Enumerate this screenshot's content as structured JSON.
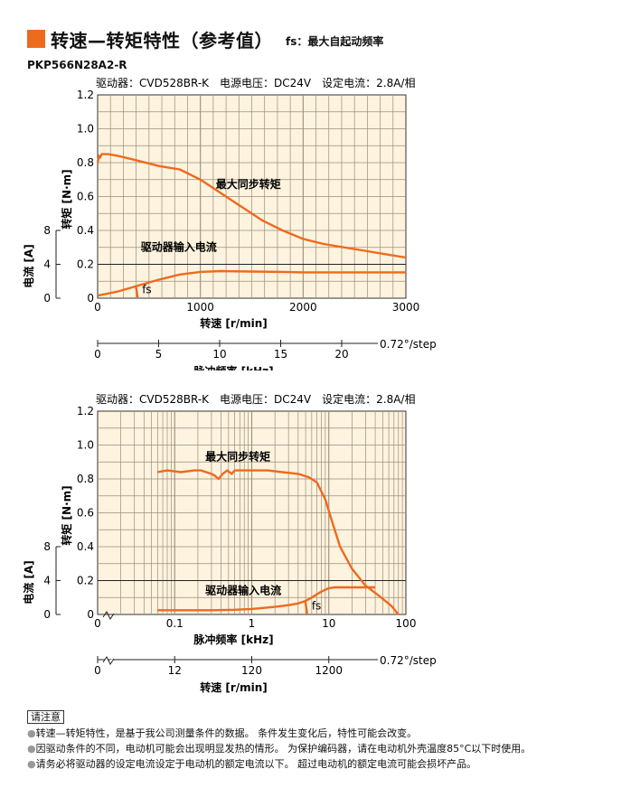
{
  "header": {
    "title": "转速—转矩特性（参考值）",
    "fs_note": "fs：最大自起动频率",
    "model": "PKP566N28A2-R",
    "accent": "#ee6a1d"
  },
  "chart_data": [
    {
      "type": "line",
      "conditions": "驱动器：CVD528BR-K　电源电压：DC24V　设定电流：2.8A/相",
      "ylabel": "转矩 [N·m]",
      "ylim": [
        0,
        1.2
      ],
      "yticks": [
        "0",
        "0.2",
        "0.4",
        "0.6",
        "0.8",
        "1.0",
        "1.2"
      ],
      "current_axis_label": "电流 [A]",
      "current_ticks": [
        "0",
        "4",
        "8"
      ],
      "current_lim": [
        0,
        8
      ],
      "xlabel": "转速 [r/min]",
      "xlim": [
        0,
        3000
      ],
      "xticks": [
        "0",
        "1000",
        "2000",
        "3000"
      ],
      "x2label": "脉冲频率 [kHz]",
      "x2ticks": [
        "0",
        "5",
        "10",
        "15",
        "20",
        "0.72°/step"
      ],
      "series": [
        {
          "name": "最大同步转矩",
          "color": "#ee6a1d",
          "x": [
            0,
            15,
            25,
            40,
            60,
            100,
            200,
            400,
            600,
            800,
            1000,
            1200,
            1400,
            1600,
            1800,
            2000,
            2200,
            2400,
            2600,
            2800,
            3000
          ],
          "y": [
            0.8,
            0.84,
            0.83,
            0.85,
            0.85,
            0.85,
            0.84,
            0.81,
            0.78,
            0.76,
            0.7,
            0.62,
            0.54,
            0.46,
            0.4,
            0.35,
            0.32,
            0.3,
            0.28,
            0.26,
            0.24
          ]
        },
        {
          "name": "驱动器输入电流",
          "color": "#ee6a1d",
          "axis": "current",
          "x": [
            0,
            200,
            400,
            600,
            800,
            1000,
            1200,
            1500,
            1800,
            2000,
            2500,
            3000
          ],
          "y": [
            0.3,
            0.8,
            1.5,
            2.2,
            2.8,
            3.1,
            3.2,
            3.15,
            3.1,
            3.05,
            3.05,
            3.05
          ]
        }
      ],
      "annotations": [
        "最大同步转矩",
        "驱动器输入电流",
        "fs"
      ],
      "fs": {
        "x": 380,
        "y0": 0.075,
        "y1": 0.005
      }
    },
    {
      "type": "line",
      "log_x": true,
      "conditions": "驱动器：CVD528BR-K　电源电压：DC24V　设定电流：2.8A/相",
      "ylabel": "转矩 [N·m]",
      "ylim": [
        0,
        1.2
      ],
      "yticks": [
        "0",
        "0.2",
        "0.4",
        "0.6",
        "0.8",
        "1.0",
        "1.2"
      ],
      "current_axis_label": "电流 [A]",
      "current_ticks": [
        "0",
        "4",
        "8"
      ],
      "current_lim": [
        0,
        8
      ],
      "xlabel": "脉冲频率 [kHz]",
      "xlim": [
        0.01,
        100
      ],
      "xticks": [
        "0",
        "0.1",
        "1",
        "10",
        "100"
      ],
      "x2label": "转速 [r/min]",
      "x2ticks": [
        "0",
        "12",
        "120",
        "1200",
        "0.72°/step"
      ],
      "series": [
        {
          "name": "最大同步转矩",
          "color": "#ee6a1d",
          "x": [
            0.06,
            0.08,
            0.12,
            0.18,
            0.22,
            0.3,
            0.33,
            0.37,
            0.42,
            0.48,
            0.55,
            0.6,
            0.8,
            1.2,
            1.6,
            2.5,
            4,
            5.5,
            7,
            9,
            11,
            14,
            20,
            30,
            45,
            65,
            80
          ],
          "y": [
            0.84,
            0.85,
            0.84,
            0.85,
            0.85,
            0.83,
            0.82,
            0.8,
            0.83,
            0.85,
            0.83,
            0.85,
            0.85,
            0.85,
            0.85,
            0.84,
            0.83,
            0.81,
            0.78,
            0.68,
            0.55,
            0.4,
            0.27,
            0.17,
            0.11,
            0.05,
            0.0
          ]
        },
        {
          "name": "驱动器输入电流",
          "color": "#ee6a1d",
          "axis": "current",
          "x": [
            0.06,
            0.1,
            0.3,
            0.6,
            1,
            2,
            3,
            4,
            5,
            6,
            8,
            10,
            12,
            15,
            20,
            40
          ],
          "y": [
            0.5,
            0.5,
            0.5,
            0.55,
            0.65,
            0.9,
            1.1,
            1.3,
            1.6,
            2.0,
            2.7,
            3.1,
            3.2,
            3.2,
            3.2,
            3.2
          ]
        }
      ],
      "annotations": [
        "最大同步转矩",
        "驱动器输入电流",
        "fs"
      ],
      "fs": {
        "x": 5.1,
        "y0": 0.075,
        "y1": 0.005
      }
    }
  ],
  "notes": {
    "title": "请注意",
    "items": [
      "转速—转矩特性，是基于我公司测量条件的数据。 条件发生变化后，特性可能会改变。",
      "因驱动条件的不同，电动机可能会出现明显发热的情形。 为保护编码器，请在电动机外壳温度85°C以下时使用。",
      "请务必将驱动器的设定电流设定于电动机的额定电流以下。 超过电动机的额定电流可能会损坏产品。"
    ]
  }
}
